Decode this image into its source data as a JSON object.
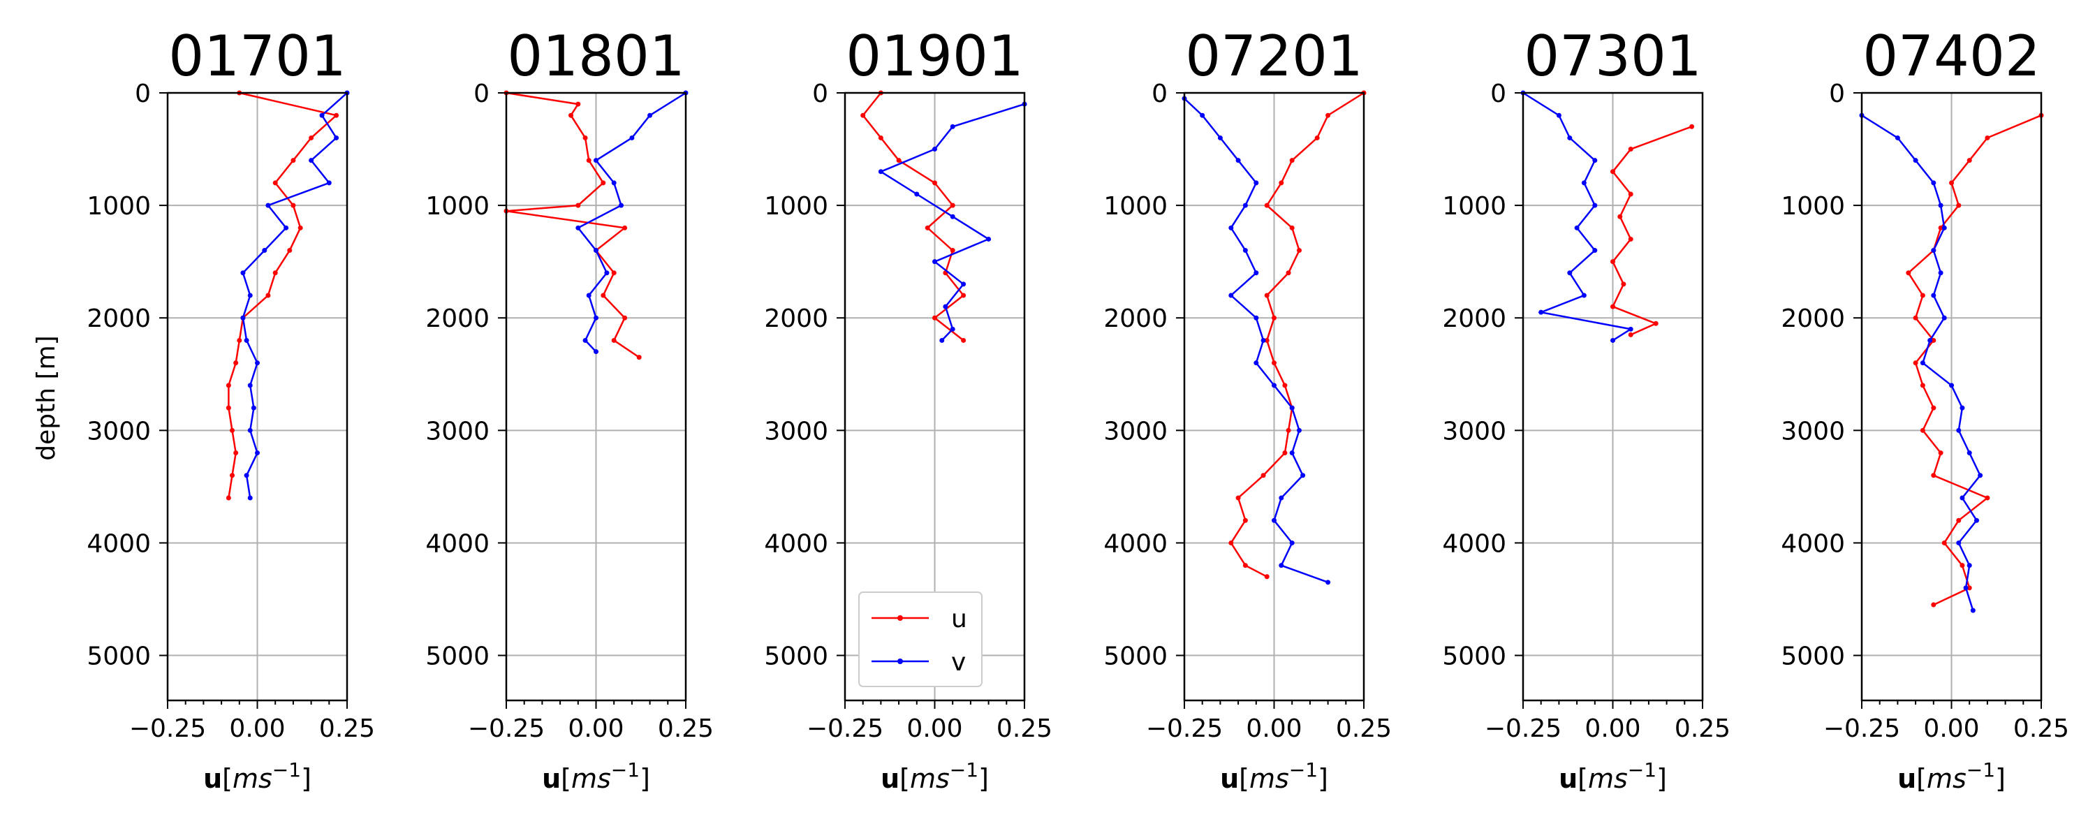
{
  "figure": {
    "ylabel": "depth [m]",
    "xlabel_bold": "u",
    "xlabel_unit": "ms",
    "xlabel_exp": "−1",
    "x_ticks": [
      -0.25,
      0.0,
      0.25
    ],
    "x_tick_labels": [
      "−0.25",
      "0.00",
      "0.25"
    ],
    "y_ticks": [
      0,
      1000,
      2000,
      3000,
      4000,
      5000
    ],
    "y_tick_labels": [
      "0",
      "1000",
      "2000",
      "3000",
      "4000",
      "5000"
    ],
    "xlim": [
      -0.25,
      0.25
    ],
    "ylim_depth": [
      0,
      5400
    ],
    "legend": {
      "panel": 2,
      "placement": "lower-left",
      "entries": [
        {
          "label": "u",
          "color": "#ff0000"
        },
        {
          "label": "v",
          "color": "#0000ff"
        }
      ]
    },
    "colors": {
      "u": "#ff0000",
      "v": "#0000ff",
      "grid": "#b0b0b0"
    }
  },
  "chart_data": [
    {
      "type": "line",
      "title": "01701",
      "grid": true,
      "series": [
        {
          "name": "u",
          "color": "#ff0000",
          "depth": [
            0,
            200,
            400,
            600,
            800,
            1000,
            1200,
            1400,
            1600,
            1800,
            2000,
            2200,
            2400,
            2600,
            2800,
            3000,
            3200,
            3400,
            3600
          ],
          "values": [
            -0.05,
            0.22,
            0.15,
            0.1,
            0.05,
            0.1,
            0.12,
            0.09,
            0.05,
            0.03,
            -0.04,
            -0.05,
            -0.06,
            -0.08,
            -0.08,
            -0.07,
            -0.06,
            -0.07,
            -0.08
          ]
        },
        {
          "name": "v",
          "color": "#0000ff",
          "depth": [
            0,
            200,
            400,
            600,
            800,
            1000,
            1200,
            1400,
            1600,
            1800,
            2000,
            2200,
            2400,
            2600,
            2800,
            3000,
            3200,
            3400,
            3600
          ],
          "values": [
            0.25,
            0.18,
            0.22,
            0.15,
            0.2,
            0.03,
            0.08,
            0.02,
            -0.04,
            -0.02,
            -0.04,
            -0.03,
            0.0,
            -0.02,
            -0.01,
            -0.02,
            0.0,
            -0.03,
            -0.02
          ]
        }
      ]
    },
    {
      "type": "line",
      "title": "01801",
      "grid": true,
      "series": [
        {
          "name": "u",
          "color": "#ff0000",
          "depth": [
            0,
            100,
            200,
            400,
            600,
            800,
            1000,
            1050,
            1200,
            1400,
            1600,
            1800,
            2000,
            2200,
            2350
          ],
          "values": [
            -0.25,
            -0.05,
            -0.07,
            -0.03,
            -0.02,
            0.02,
            -0.05,
            -0.25,
            0.08,
            0.0,
            0.05,
            0.02,
            0.08,
            0.05,
            0.12
          ]
        },
        {
          "name": "v",
          "color": "#0000ff",
          "depth": [
            0,
            200,
            400,
            600,
            800,
            1000,
            1200,
            1400,
            1600,
            1800,
            2000,
            2200,
            2300
          ],
          "values": [
            0.25,
            0.15,
            0.1,
            0.0,
            0.05,
            0.07,
            -0.05,
            0.0,
            0.03,
            -0.02,
            0.0,
            -0.03,
            0.0
          ]
        }
      ]
    },
    {
      "type": "line",
      "title": "01901",
      "grid": true,
      "series": [
        {
          "name": "u",
          "color": "#ff0000",
          "depth": [
            0,
            200,
            400,
            600,
            800,
            1000,
            1200,
            1400,
            1600,
            1800,
            2000,
            2200
          ],
          "values": [
            -0.15,
            -0.2,
            -0.15,
            -0.1,
            0.0,
            0.05,
            -0.02,
            0.05,
            0.03,
            0.08,
            0.0,
            0.08
          ]
        },
        {
          "name": "v",
          "color": "#0000ff",
          "depth": [
            100,
            300,
            500,
            700,
            900,
            1100,
            1300,
            1500,
            1700,
            1900,
            2100,
            2200
          ],
          "values": [
            0.25,
            0.05,
            0.0,
            -0.15,
            -0.05,
            0.05,
            0.15,
            0.0,
            0.08,
            0.03,
            0.05,
            0.02
          ]
        }
      ]
    },
    {
      "type": "line",
      "title": "07201",
      "grid": true,
      "series": [
        {
          "name": "u",
          "color": "#ff0000",
          "depth": [
            0,
            200,
            400,
            600,
            800,
            1000,
            1200,
            1400,
            1600,
            1800,
            2000,
            2200,
            2400,
            2600,
            2800,
            3000,
            3200,
            3400,
            3600,
            3800,
            4000,
            4200,
            4300
          ],
          "values": [
            0.25,
            0.15,
            0.12,
            0.05,
            0.02,
            -0.02,
            0.05,
            0.07,
            0.04,
            -0.02,
            0.0,
            -0.02,
            0.0,
            0.03,
            0.05,
            0.04,
            0.03,
            -0.03,
            -0.1,
            -0.08,
            -0.12,
            -0.08,
            -0.02
          ]
        },
        {
          "name": "v",
          "color": "#0000ff",
          "depth": [
            50,
            200,
            400,
            600,
            800,
            1000,
            1200,
            1400,
            1600,
            1800,
            2000,
            2200,
            2400,
            2600,
            2800,
            3000,
            3200,
            3400,
            3600,
            3800,
            4000,
            4200,
            4350
          ],
          "values": [
            -0.25,
            -0.2,
            -0.15,
            -0.1,
            -0.05,
            -0.08,
            -0.12,
            -0.08,
            -0.05,
            -0.12,
            -0.05,
            -0.03,
            -0.05,
            0.0,
            0.05,
            0.07,
            0.05,
            0.08,
            0.02,
            0.0,
            0.05,
            0.02,
            0.15
          ]
        }
      ]
    },
    {
      "type": "line",
      "title": "07301",
      "grid": true,
      "series": [
        {
          "name": "u",
          "color": "#ff0000",
          "depth": [
            300,
            500,
            700,
            900,
            1100,
            1300,
            1500,
            1700,
            1900,
            2050,
            2150
          ],
          "values": [
            0.22,
            0.05,
            0.0,
            0.05,
            0.02,
            0.05,
            0.0,
            0.03,
            0.0,
            0.12,
            0.05
          ]
        },
        {
          "name": "v",
          "color": "#0000ff",
          "depth": [
            0,
            200,
            400,
            600,
            800,
            1000,
            1200,
            1400,
            1600,
            1800,
            1950,
            2100,
            2200
          ],
          "values": [
            -0.25,
            -0.15,
            -0.12,
            -0.05,
            -0.08,
            -0.05,
            -0.1,
            -0.05,
            -0.12,
            -0.08,
            -0.2,
            0.05,
            0.0
          ]
        }
      ]
    },
    {
      "type": "line",
      "title": "07402",
      "grid": true,
      "series": [
        {
          "name": "u",
          "color": "#ff0000",
          "depth": [
            200,
            400,
            600,
            800,
            1000,
            1200,
            1400,
            1600,
            1800,
            2000,
            2200,
            2400,
            2600,
            2800,
            3000,
            3200,
            3400,
            3600,
            3800,
            4000,
            4200,
            4400,
            4550
          ],
          "values": [
            0.25,
            0.1,
            0.05,
            0.0,
            0.02,
            -0.03,
            -0.05,
            -0.12,
            -0.08,
            -0.1,
            -0.05,
            -0.1,
            -0.08,
            -0.05,
            -0.08,
            -0.03,
            -0.05,
            0.1,
            0.02,
            -0.02,
            0.03,
            0.05,
            -0.05
          ]
        },
        {
          "name": "v",
          "color": "#0000ff",
          "depth": [
            200,
            400,
            600,
            800,
            1000,
            1200,
            1400,
            1600,
            1800,
            2000,
            2200,
            2400,
            2600,
            2800,
            3000,
            3200,
            3400,
            3600,
            3800,
            4000,
            4200,
            4400,
            4600
          ],
          "values": [
            -0.25,
            -0.15,
            -0.1,
            -0.05,
            -0.03,
            -0.02,
            -0.05,
            -0.03,
            -0.05,
            -0.02,
            -0.06,
            -0.08,
            0.0,
            0.03,
            0.02,
            0.05,
            0.08,
            0.03,
            0.07,
            0.02,
            0.05,
            0.04,
            0.06
          ]
        }
      ]
    }
  ]
}
